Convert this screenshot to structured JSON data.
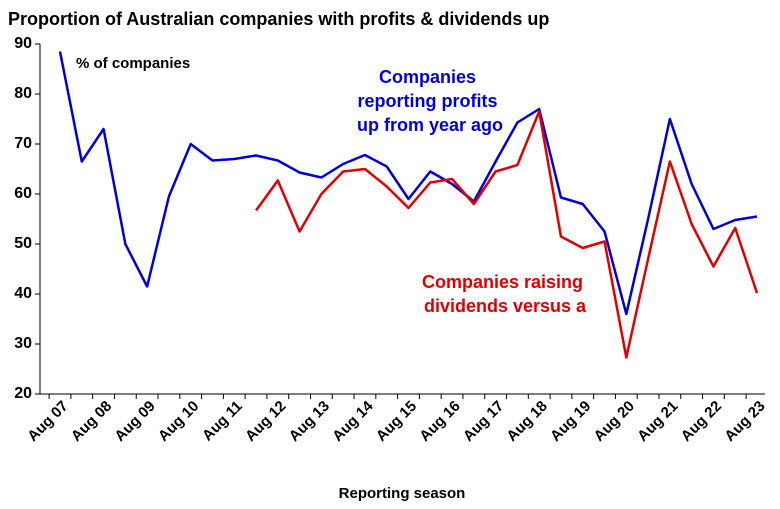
{
  "chart_data": {
    "type": "line",
    "title": "Proportion of Australian companies with profits & dividends up",
    "y_unit_label": "% of companies",
    "x_label": "Reporting season",
    "categories": [
      "Aug 07",
      null,
      "Aug 08",
      null,
      "Aug 09",
      null,
      "Aug 10",
      null,
      "Aug 11",
      null,
      "Aug 12",
      null,
      "Aug 13",
      null,
      "Aug 14",
      null,
      "Aug 15",
      null,
      "Aug 16",
      null,
      "Aug 17",
      null,
      "Aug 18",
      null,
      "Aug 19",
      null,
      "Aug 20",
      null,
      "Aug 21",
      null,
      "Aug 22",
      null,
      "Aug 23"
    ],
    "series": [
      {
        "name": "Companies reporting profits up from year ago",
        "color": "#0000dd",
        "values": [
          88.5,
          66.5,
          73,
          50,
          41.5,
          59.5,
          70,
          66.7,
          67,
          67.7,
          66.7,
          64.3,
          63.3,
          66,
          67.8,
          65.5,
          59,
          64.5,
          62,
          58.5,
          66.5,
          74.3,
          77,
          59.3,
          58,
          52.5,
          36,
          55,
          75,
          62,
          53,
          54.8,
          55.5
        ]
      },
      {
        "name": "Companies raising dividends versus a",
        "color": "#e00000",
        "values": [
          null,
          null,
          null,
          null,
          null,
          null,
          null,
          null,
          null,
          56.7,
          62.7,
          52.5,
          60,
          64.5,
          65,
          61.5,
          57.2,
          62.3,
          63,
          58,
          64.5,
          65.8,
          76.5,
          51.5,
          49.2,
          50.5,
          27.3,
          47,
          66.5,
          54,
          45.5,
          53.2,
          40.2
        ]
      }
    ],
    "ylim": [
      20,
      90
    ],
    "yticks": [
      20,
      30,
      40,
      50,
      60,
      70,
      80,
      90
    ],
    "grid": false
  }
}
